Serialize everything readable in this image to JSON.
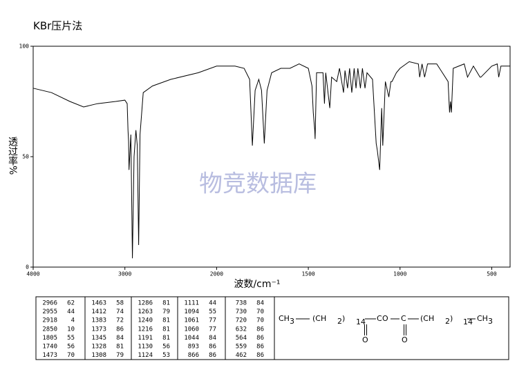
{
  "chart_data": {
    "type": "line",
    "title": "KBr压片法",
    "xlabel": "波数/cm⁻¹",
    "ylabel": "透过率%",
    "watermark": "物竞数据库",
    "xlim": [
      4000,
      400
    ],
    "xticks": [
      4000,
      3000,
      2000,
      1500,
      1000,
      500
    ],
    "ylim": [
      0,
      100
    ],
    "yticks": [
      0,
      50,
      100
    ],
    "series": [
      {
        "color": "#000000",
        "x": [
          4000,
          3800,
          3600,
          3450,
          3300,
          3100,
          3000,
          2975,
          2966,
          2960,
          2955,
          2935,
          2918,
          2900,
          2880,
          2865,
          2850,
          2835,
          2800,
          2700,
          2500,
          2200,
          2000,
          1900,
          1850,
          1820,
          1805,
          1790,
          1770,
          1755,
          1740,
          1725,
          1700,
          1650,
          1600,
          1550,
          1500,
          1480,
          1473,
          1465,
          1463,
          1455,
          1420,
          1412,
          1405,
          1383,
          1373,
          1345,
          1330,
          1308,
          1300,
          1286,
          1275,
          1263,
          1250,
          1240,
          1230,
          1216,
          1205,
          1191,
          1180,
          1150,
          1130,
          1124,
          1111,
          1100,
          1094,
          1080,
          1061,
          1050,
          1044,
          1020,
          1000,
          950,
          900,
          893,
          880,
          866,
          850,
          800,
          738,
          730,
          725,
          720,
          710,
          650,
          632,
          600,
          564,
          559,
          500,
          470,
          462,
          450,
          400
        ],
        "values": [
          81,
          79,
          75,
          72.5,
          74,
          75,
          75.6,
          74,
          62,
          57,
          44,
          60,
          4,
          50,
          62,
          55,
          10,
          60,
          79,
          82,
          85,
          88,
          91,
          91,
          90,
          85,
          55,
          80,
          85,
          80,
          56,
          80,
          88,
          90,
          90,
          92,
          90,
          82,
          70,
          62,
          58,
          88,
          88,
          74,
          88,
          72,
          86,
          84,
          90,
          79,
          89,
          81,
          90,
          79,
          90,
          81,
          90,
          81,
          90,
          81,
          88,
          85,
          56,
          53,
          44,
          72,
          55,
          84,
          77,
          84,
          84,
          88,
          90,
          93,
          92,
          86,
          92,
          86,
          92,
          92,
          84,
          70,
          75,
          70,
          90,
          92,
          86,
          91,
          86,
          86,
          91,
          92,
          86,
          91,
          91
        ]
      }
    ]
  },
  "peak_table": [
    [
      [
        2966,
        62
      ],
      [
        2955,
        44
      ],
      [
        2918,
        4
      ],
      [
        2850,
        10
      ],
      [
        1805,
        55
      ],
      [
        1740,
        56
      ],
      [
        1473,
        70
      ]
    ],
    [
      [
        1463,
        58
      ],
      [
        1412,
        74
      ],
      [
        1383,
        72
      ],
      [
        1373,
        86
      ],
      [
        1345,
        84
      ],
      [
        1328,
        81
      ],
      [
        1308,
        79
      ]
    ],
    [
      [
        1286,
        81
      ],
      [
        1263,
        79
      ],
      [
        1240,
        81
      ],
      [
        1216,
        81
      ],
      [
        1191,
        81
      ],
      [
        1130,
        56
      ],
      [
        1124,
        53
      ]
    ],
    [
      [
        1111,
        44
      ],
      [
        1094,
        55
      ],
      [
        1061,
        77
      ],
      [
        1060,
        77
      ],
      [
        1044,
        84
      ],
      [
        893,
        86
      ],
      [
        866,
        86
      ]
    ],
    [
      [
        738,
        84
      ],
      [
        730,
        70
      ],
      [
        720,
        70
      ],
      [
        632,
        86
      ],
      [
        564,
        86
      ],
      [
        559,
        86
      ],
      [
        462,
        86
      ]
    ]
  ],
  "structure": {
    "parts": [
      "CH",
      "3",
      "(CH",
      "2",
      ")",
      "14",
      "C",
      "O",
      "C",
      "(CH",
      "2",
      ")",
      "14",
      "CH",
      "3",
      "O",
      "O"
    ]
  }
}
